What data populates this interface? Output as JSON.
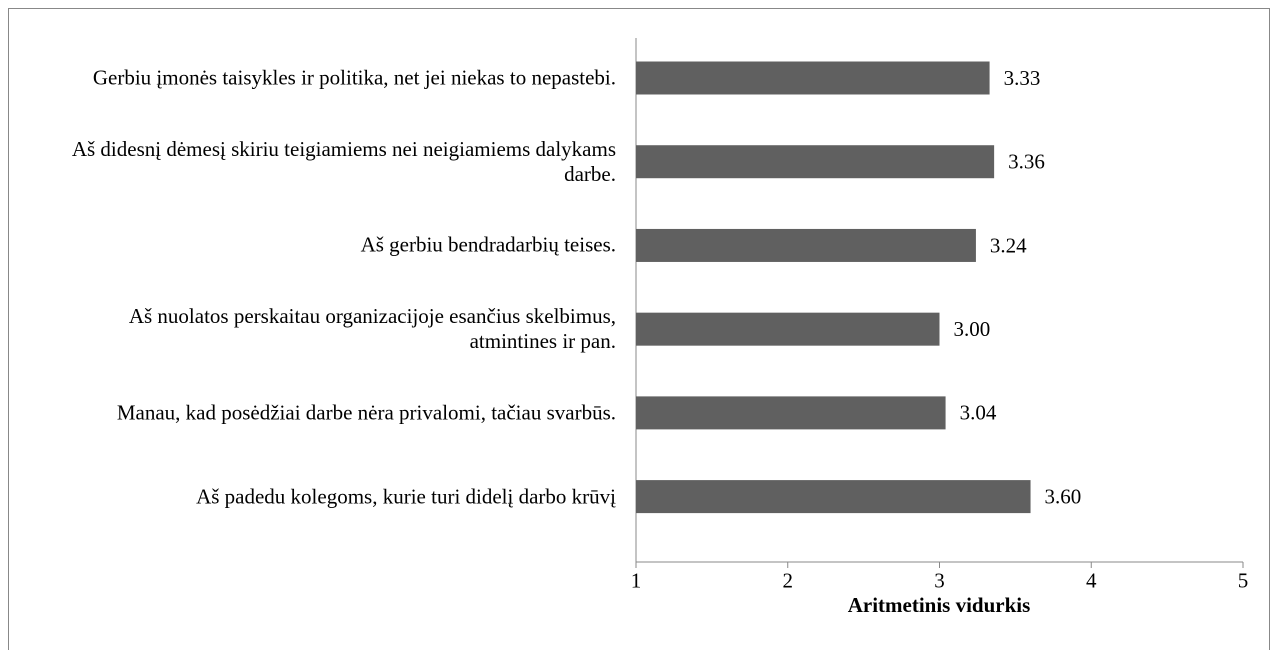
{
  "chart_data": {
    "type": "bar",
    "orientation": "horizontal",
    "categories": [
      "Gerbiu įmonės taisykles ir politika, net jei niekas to nepastebi.",
      "Aš didesnį dėmesį skiriu teigiamiems nei neigiamiems dalykams darbe.",
      "Aš gerbiu bendradarbių teises.",
      "Aš nuolatos perskaitau organizacijoje esančius skelbimus, atmintines ir pan.",
      "Manau, kad posėdžiai darbe nėra privalomi, tačiau svarbūs.",
      "Aš padedu kolegoms, kurie turi didelį darbo krūvį"
    ],
    "values": [
      3.33,
      3.36,
      3.24,
      3.0,
      3.04,
      3.6
    ],
    "value_labels": [
      "3.33",
      "3.36",
      "3.24",
      "3.00",
      "3.04",
      "3.60"
    ],
    "color": "#606060",
    "x_label": "Aritmetinis vidurkis",
    "xlim": [
      1,
      5
    ],
    "xticks": [
      1,
      2,
      3,
      4,
      5
    ],
    "grid": false
  }
}
